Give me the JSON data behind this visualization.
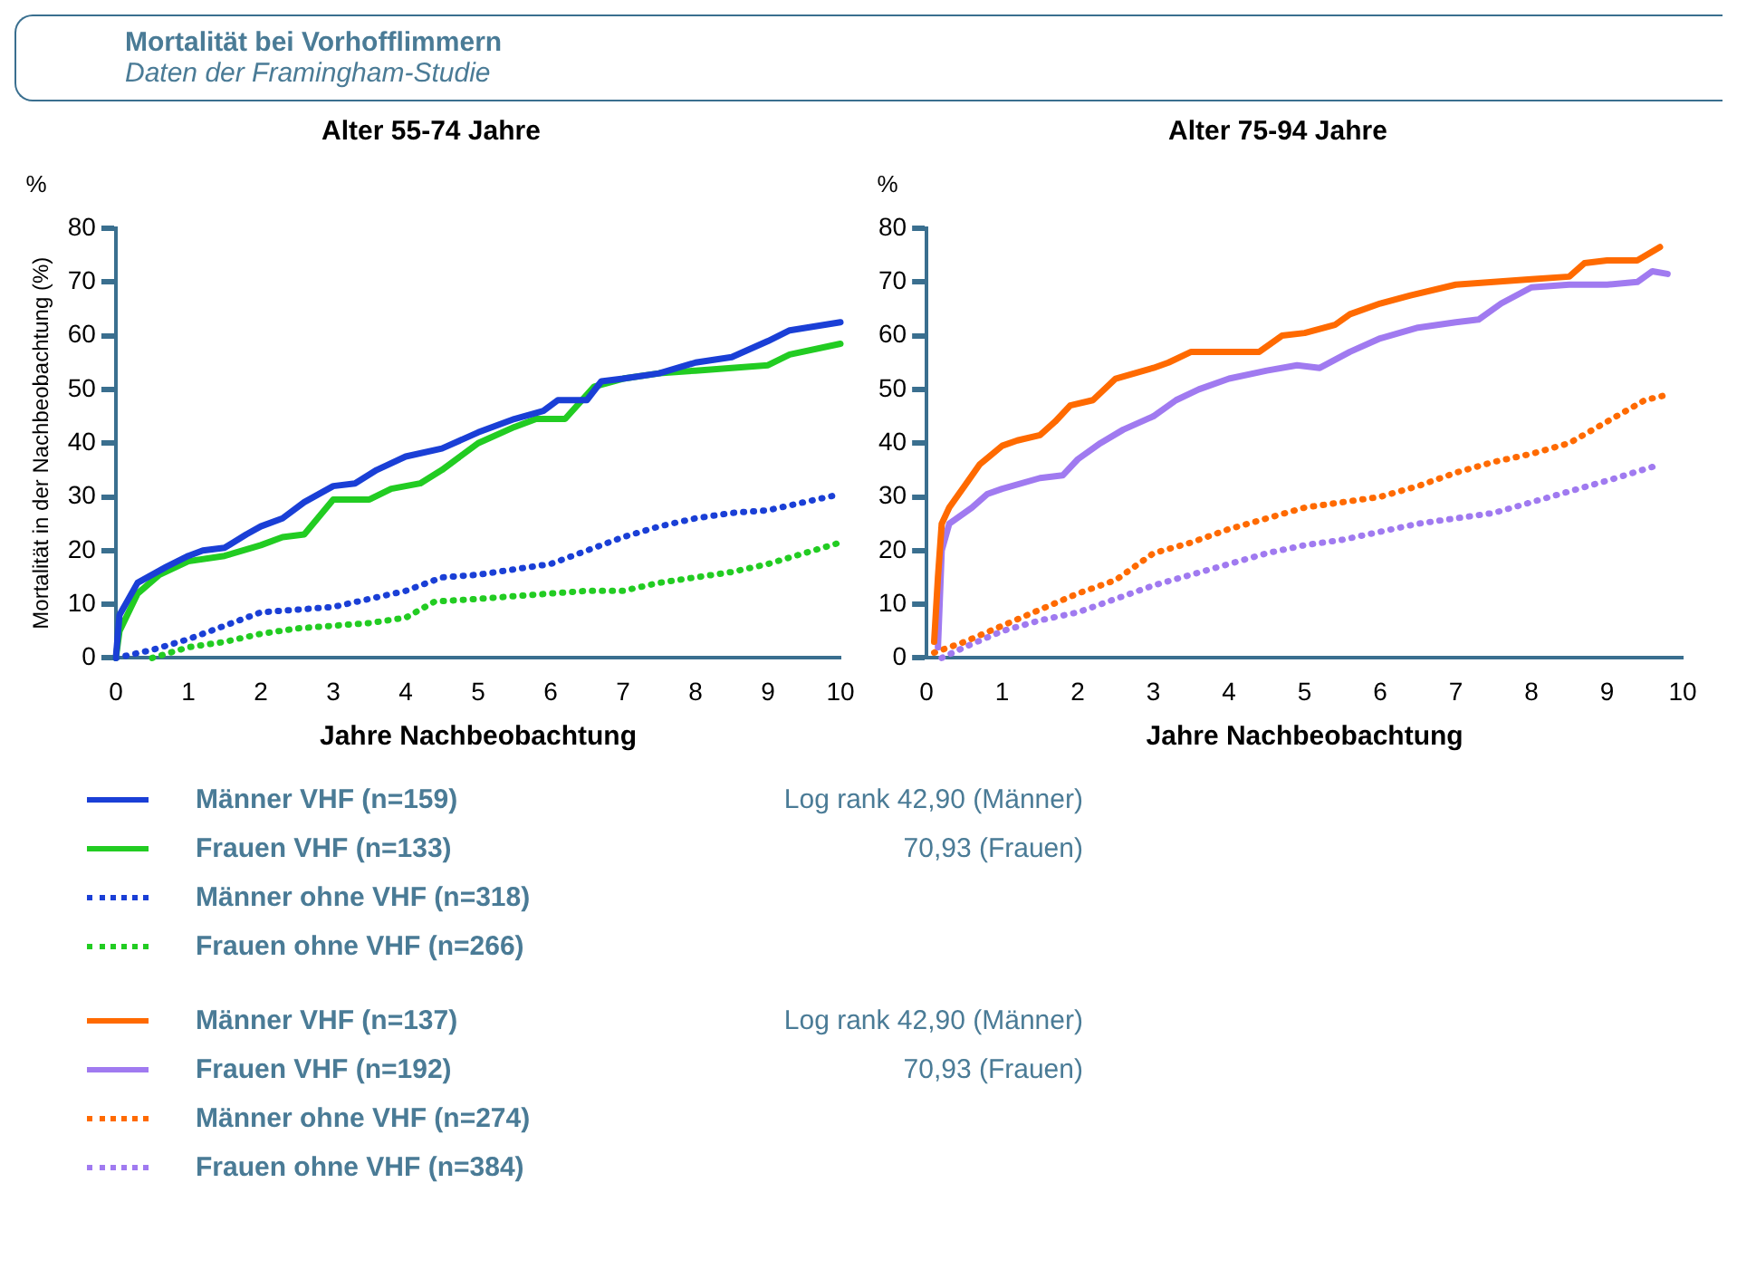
{
  "chart_data": [
    {
      "type": "other",
      "title": "Mortalität bei Vorhofflimmern",
      "subtitle": "Daten der Framingham-Studie"
    },
    {
      "type": "line",
      "title": "Alter 55-74 Jahre",
      "xlabel": "Jahre Nachbeobachtung",
      "ylabel": "Mortalität in der Nachbeobachtung (%)",
      "annotations": [
        "%",
        "Log rank  42,90 (Männer)",
        "70,93 (Frauen)"
      ],
      "legend": "bottom",
      "grid": false,
      "xlim": [
        0,
        10
      ],
      "ylim": [
        0,
        80
      ],
      "xticks": [
        0,
        1,
        2,
        3,
        4,
        5,
        6,
        7,
        8,
        9,
        10
      ],
      "yticks": [
        0,
        10,
        20,
        30,
        40,
        50,
        60,
        70,
        80
      ],
      "series": [
        {
          "name": "Männer VHF (n=159)",
          "color": "#1a3fd6",
          "line_style": "solid",
          "x": [
            0,
            0.05,
            0.3,
            0.7,
            1,
            1.2,
            1.5,
            1.8,
            2,
            2.3,
            2.6,
            3,
            3.3,
            3.6,
            4,
            4.5,
            5,
            5.5,
            5.9,
            6.1,
            6.5,
            6.7,
            7,
            7.5,
            8,
            8.5,
            9,
            9.3,
            10
          ],
          "values": [
            0,
            8,
            14,
            17,
            19,
            20,
            20.5,
            23,
            24.5,
            26,
            29,
            32,
            32.5,
            35,
            37.5,
            39,
            42,
            44.5,
            46,
            48,
            48,
            51.5,
            52,
            53,
            55,
            56,
            59,
            61,
            62.5
          ]
        },
        {
          "name": "Frauen VHF (n=133)",
          "color": "#22cc22",
          "line_style": "solid",
          "x": [
            0,
            0.05,
            0.3,
            0.6,
            1,
            1.5,
            2,
            2.3,
            2.6,
            3,
            3.5,
            3.8,
            4.2,
            4.5,
            5,
            5.5,
            5.8,
            6.2,
            6.6,
            7,
            7.5,
            8,
            8.5,
            9,
            9.3,
            10
          ],
          "values": [
            0,
            5,
            12,
            15.5,
            18,
            19,
            21,
            22.5,
            23,
            29.5,
            29.5,
            31.5,
            32.5,
            35,
            40,
            43,
            44.5,
            44.5,
            50.5,
            52,
            53,
            53.5,
            54,
            54.5,
            56.5,
            58.5
          ]
        },
        {
          "name": "Männer ohne VHF (n=318)",
          "color": "#1a3fd6",
          "line_style": "dotted",
          "x": [
            0,
            0.5,
            1,
            1.5,
            2,
            2.5,
            3,
            3.5,
            4,
            4.5,
            5,
            5.5,
            6,
            6.5,
            7,
            7.5,
            8,
            8.5,
            9,
            9.5,
            10
          ],
          "values": [
            0,
            1.5,
            3.5,
            6,
            8.5,
            9,
            9.5,
            11,
            12.5,
            15,
            15.5,
            16.5,
            17.5,
            20,
            22.5,
            24.5,
            26,
            27,
            27.5,
            29,
            30.5
          ]
        },
        {
          "name": "Frauen ohne VHF (n=266)",
          "color": "#22cc22",
          "line_style": "dotted",
          "x": [
            0.5,
            1,
            1.5,
            2,
            2.5,
            3,
            3.5,
            4,
            4.4,
            5,
            5.5,
            6,
            6.5,
            7,
            7.5,
            8,
            8.5,
            9,
            9.5,
            10
          ],
          "values": [
            0,
            2,
            3,
            4.5,
            5.5,
            6,
            6.5,
            7.5,
            10.5,
            11,
            11.5,
            12,
            12.5,
            12.5,
            14,
            15,
            16,
            17.5,
            19.5,
            21.5
          ]
        }
      ]
    },
    {
      "type": "line",
      "title": "Alter 75-94 Jahre",
      "xlabel": "Jahre Nachbeobachtung",
      "annotations": [
        "%",
        "Log rank  42,90 (Männer)",
        "70,93 (Frauen)"
      ],
      "legend": "bottom",
      "grid": false,
      "xlim": [
        0,
        10
      ],
      "ylim": [
        0,
        80
      ],
      "xticks": [
        0,
        1,
        2,
        3,
        4,
        5,
        6,
        7,
        8,
        9,
        10
      ],
      "yticks": [
        0,
        10,
        20,
        30,
        40,
        50,
        60,
        70,
        80
      ],
      "series": [
        {
          "name": "Männer VHF (n=137)",
          "color": "#ff6a00",
          "line_style": "solid",
          "x": [
            0.1,
            0.15,
            0.2,
            0.3,
            0.5,
            0.7,
            1,
            1.2,
            1.5,
            1.7,
            1.9,
            2.2,
            2.5,
            3,
            3.2,
            3.5,
            4,
            4.4,
            4.7,
            5,
            5.4,
            5.6,
            6,
            6.4,
            7,
            7.5,
            8,
            8.5,
            8.7,
            9,
            9.4,
            9.7
          ],
          "values": [
            3,
            15,
            25,
            28,
            32,
            36,
            39.5,
            40.5,
            41.5,
            44,
            47,
            48,
            52,
            54,
            55,
            57,
            57,
            57,
            60,
            60.5,
            62,
            64,
            66,
            67.5,
            69.5,
            70,
            70.5,
            71,
            73.5,
            74,
            74,
            76.5
          ]
        },
        {
          "name": "Frauen VHF (n=192)",
          "color": "#a07af0",
          "line_style": "solid",
          "x": [
            0.15,
            0.2,
            0.3,
            0.6,
            0.8,
            1,
            1.5,
            1.8,
            2,
            2.3,
            2.6,
            3,
            3.3,
            3.6,
            4,
            4.5,
            4.9,
            5.2,
            5.6,
            6,
            6.5,
            7,
            7.3,
            7.6,
            8,
            8.5,
            9,
            9.4,
            9.6,
            9.8
          ],
          "values": [
            2,
            20,
            25,
            28,
            30.5,
            31.5,
            33.5,
            34,
            37,
            40,
            42.5,
            45,
            48,
            50,
            52,
            53.5,
            54.5,
            54,
            57,
            59.5,
            61.5,
            62.5,
            63,
            66,
            69,
            69.5,
            69.5,
            70,
            72,
            71.5
          ]
        },
        {
          "name": "Männer ohne VHF (n=274)",
          "color": "#ff6a00",
          "line_style": "dotted",
          "x": [
            0.1,
            0.5,
            1,
            1.5,
            2,
            2.5,
            3,
            3.5,
            4,
            4.5,
            5,
            5.5,
            6,
            6.5,
            7,
            7.5,
            8,
            8.5,
            9,
            9.5,
            9.8
          ],
          "values": [
            1,
            3,
            6,
            9,
            12,
            14.5,
            19.5,
            21.5,
            24,
            26,
            28,
            29,
            30,
            32,
            34.5,
            36.5,
            38,
            40,
            44,
            48,
            49
          ]
        },
        {
          "name": "Frauen ohne VHF (n=384)",
          "color": "#a07af0",
          "line_style": "dotted",
          "x": [
            0.2,
            0.5,
            1,
            1.5,
            2,
            2.5,
            3,
            3.5,
            4,
            4.5,
            5,
            5.5,
            6,
            6.5,
            7,
            7.5,
            8,
            8.5,
            9,
            9.7
          ],
          "values": [
            0,
            2,
            5,
            7,
            8.5,
            11,
            13.5,
            15.5,
            17.5,
            19.5,
            21,
            22,
            23.5,
            25,
            26,
            27,
            29,
            31,
            33,
            36
          ]
        }
      ]
    }
  ]
}
